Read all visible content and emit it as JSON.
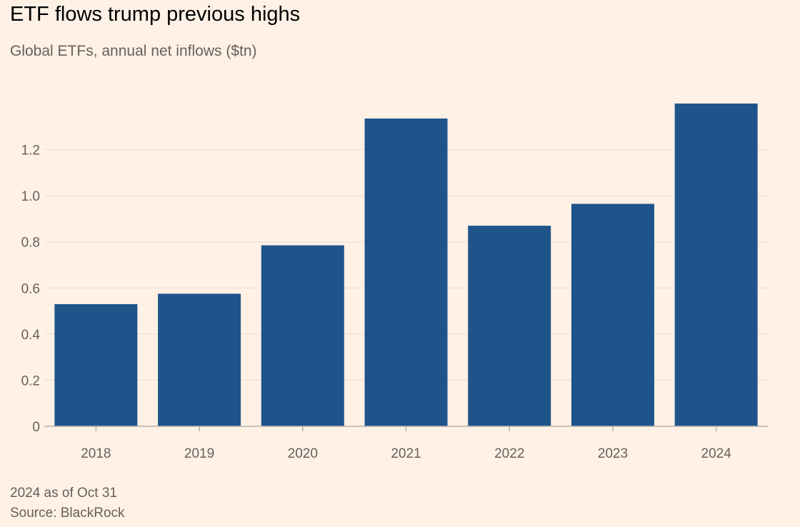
{
  "title": "ETF flows trump previous highs",
  "subtitle": "Global ETFs, annual net inflows ($tn)",
  "footnote": "2024 as of Oct 31",
  "source": "Source: BlackRock",
  "colors": {
    "background": "#fff1e5",
    "bar": "#1f548b",
    "grid": "#e9ddd2",
    "axis": "#b9b1aa",
    "text": "#66605c"
  },
  "chart_data": {
    "type": "bar",
    "title": "ETF flows trump previous highs",
    "subtitle": "Global ETFs, annual net inflows ($tn)",
    "xlabel": "",
    "ylabel": "",
    "categories": [
      "2018",
      "2019",
      "2020",
      "2021",
      "2022",
      "2023",
      "2024"
    ],
    "values": [
      0.53,
      0.575,
      0.785,
      1.335,
      0.87,
      0.965,
      1.4
    ],
    "ylim": [
      0,
      1.4
    ],
    "yticks": [
      0,
      0.2,
      0.4,
      0.6,
      0.8,
      1.0,
      1.2
    ],
    "ytick_labels": [
      "0",
      "0.2",
      "0.4",
      "0.6",
      "0.8",
      "1.0",
      "1.2"
    ],
    "grid": true,
    "legend": "none"
  }
}
